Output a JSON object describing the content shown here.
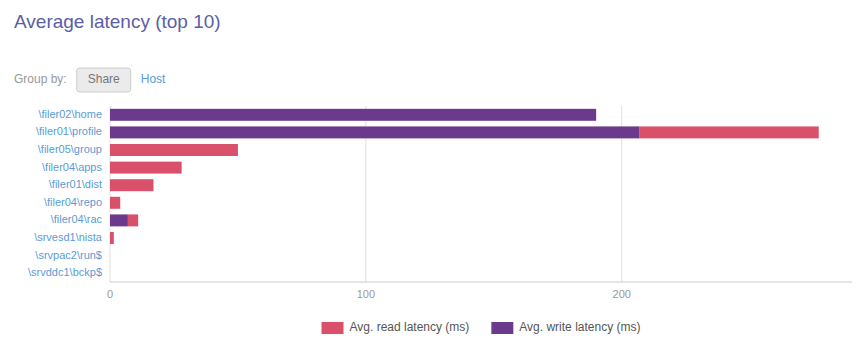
{
  "chart_data": {
    "type": "bar",
    "orientation": "horizontal",
    "stacked": true,
    "title": "Average latency (top 10)",
    "annotations": [
      "Group by:",
      "Share",
      "Host"
    ],
    "categories": [
      "\\filer02\\home",
      "\\filer01\\profile",
      "\\filer05\\group",
      "\\filer04\\apps",
      "\\filer01\\dist",
      "\\filer04\\repo",
      "\\filer04\\rac",
      "\\srvesd1\\nista",
      "\\srvpac2\\run$",
      "\\srvddc1\\bckp$"
    ],
    "series": [
      {
        "name": "Avg. read latency (ms)",
        "color": "#d9506a",
        "values": [
          0,
          70,
          50,
          28,
          17,
          4,
          4,
          1.5,
          0,
          0
        ]
      },
      {
        "name": "Avg. write latency (ms)",
        "color": "#6b3a8c",
        "values": [
          190,
          207,
          0,
          0,
          0,
          0,
          7,
          0,
          0,
          0
        ]
      }
    ],
    "xlim": [
      0,
      290
    ],
    "xticks": [
      0,
      100,
      200
    ],
    "grid": true,
    "legend": "bottom"
  }
}
